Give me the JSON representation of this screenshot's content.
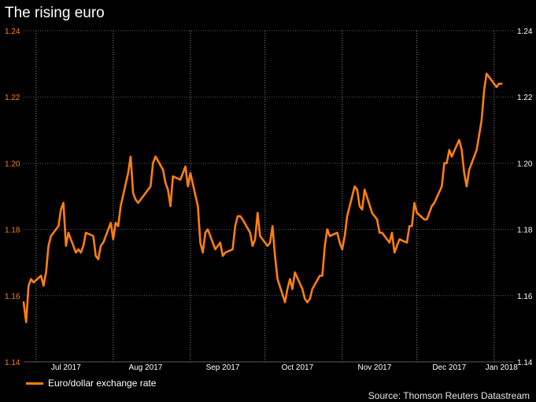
{
  "title": "The rising euro",
  "legend": {
    "label": "Euro/dollar exchange rate"
  },
  "source": "Source: Thomson Reuters Datastream",
  "colors": {
    "line": "#ff7f0e",
    "left_axis_text": "#ff7f0e",
    "right_axis_text": "#ffffff",
    "grid": "#5a5a5a",
    "month_grid": "#8a8a8a",
    "background": "#000000"
  },
  "chart_data": {
    "type": "line",
    "title": "The rising euro",
    "xlabel": "",
    "ylabel": "",
    "ylim": [
      1.14,
      1.24
    ],
    "yticks": [
      "1.14",
      "1.16",
      "1.18",
      "1.20",
      "1.22",
      "1.24"
    ],
    "y_axes": "left and right",
    "x_tick_labels": [
      "Jul 2017",
      "Aug 2017",
      "Sep 2017",
      "Oct 2017",
      "Nov 2017",
      "Dec 2017",
      "Jan 2018"
    ],
    "x_range": [
      "2017-06-26",
      "2018-01-09"
    ],
    "grid": true,
    "legend_position": "bottom-left",
    "series": [
      {
        "name": "Euro/dollar exchange rate",
        "points": [
          [
            "2017-06-26",
            1.158
          ],
          [
            "2017-06-27",
            1.152
          ],
          [
            "2017-06-28",
            1.163
          ],
          [
            "2017-06-29",
            1.165
          ],
          [
            "2017-06-30",
            1.164
          ],
          [
            "2017-07-03",
            1.166
          ],
          [
            "2017-07-04",
            1.163
          ],
          [
            "2017-07-05",
            1.167
          ],
          [
            "2017-07-06",
            1.175
          ],
          [
            "2017-07-07",
            1.178
          ],
          [
            "2017-07-10",
            1.181
          ],
          [
            "2017-07-11",
            1.186
          ],
          [
            "2017-07-12",
            1.188
          ],
          [
            "2017-07-13",
            1.175
          ],
          [
            "2017-07-14",
            1.179
          ],
          [
            "2017-07-17",
            1.173
          ],
          [
            "2017-07-18",
            1.174
          ],
          [
            "2017-07-19",
            1.173
          ],
          [
            "2017-07-20",
            1.175
          ],
          [
            "2017-07-21",
            1.179
          ],
          [
            "2017-07-24",
            1.178
          ],
          [
            "2017-07-25",
            1.172
          ],
          [
            "2017-07-26",
            1.171
          ],
          [
            "2017-07-27",
            1.175
          ],
          [
            "2017-07-28",
            1.176
          ],
          [
            "2017-07-31",
            1.182
          ],
          [
            "2017-08-01",
            1.177
          ],
          [
            "2017-08-02",
            1.182
          ],
          [
            "2017-08-03",
            1.181
          ],
          [
            "2017-08-04",
            1.187
          ],
          [
            "2017-08-07",
            1.197
          ],
          [
            "2017-08-08",
            1.202
          ],
          [
            "2017-08-09",
            1.191
          ],
          [
            "2017-08-10",
            1.189
          ],
          [
            "2017-08-11",
            1.188
          ],
          [
            "2017-08-14",
            1.191
          ],
          [
            "2017-08-15",
            1.192
          ],
          [
            "2017-08-16",
            1.193
          ],
          [
            "2017-08-17",
            1.2
          ],
          [
            "2017-08-18",
            1.202
          ],
          [
            "2017-08-21",
            1.198
          ],
          [
            "2017-08-22",
            1.194
          ],
          [
            "2017-08-23",
            1.192
          ],
          [
            "2017-08-24",
            1.187
          ],
          [
            "2017-08-25",
            1.196
          ],
          [
            "2017-08-28",
            1.195
          ],
          [
            "2017-08-29",
            1.197
          ],
          [
            "2017-08-30",
            1.199
          ],
          [
            "2017-08-31",
            1.193
          ],
          [
            "2017-09-01",
            1.197
          ],
          [
            "2017-09-04",
            1.187
          ],
          [
            "2017-09-05",
            1.176
          ],
          [
            "2017-09-06",
            1.173
          ],
          [
            "2017-09-07",
            1.179
          ],
          [
            "2017-09-08",
            1.18
          ],
          [
            "2017-09-11",
            1.174
          ],
          [
            "2017-09-12",
            1.175
          ],
          [
            "2017-09-13",
            1.176
          ],
          [
            "2017-09-14",
            1.172
          ],
          [
            "2017-09-15",
            1.173
          ],
          [
            "2017-09-18",
            1.174
          ],
          [
            "2017-09-19",
            1.181
          ],
          [
            "2017-09-20",
            1.184
          ],
          [
            "2017-09-21",
            1.184
          ],
          [
            "2017-09-22",
            1.183
          ],
          [
            "2017-09-25",
            1.179
          ],
          [
            "2017-09-26",
            1.175
          ],
          [
            "2017-09-27",
            1.177
          ],
          [
            "2017-09-28",
            1.185
          ],
          [
            "2017-09-29",
            1.178
          ],
          [
            "2017-10-02",
            1.175
          ],
          [
            "2017-10-03",
            1.176
          ],
          [
            "2017-10-04",
            1.181
          ],
          [
            "2017-10-05",
            1.172
          ],
          [
            "2017-10-06",
            1.165
          ],
          [
            "2017-10-09",
            1.158
          ],
          [
            "2017-10-10",
            1.162
          ],
          [
            "2017-10-11",
            1.165
          ],
          [
            "2017-10-12",
            1.162
          ],
          [
            "2017-10-13",
            1.167
          ],
          [
            "2017-10-16",
            1.162
          ],
          [
            "2017-10-17",
            1.159
          ],
          [
            "2017-10-18",
            1.158
          ],
          [
            "2017-10-19",
            1.159
          ],
          [
            "2017-10-20",
            1.162
          ],
          [
            "2017-10-23",
            1.166
          ],
          [
            "2017-10-24",
            1.166
          ],
          [
            "2017-10-25",
            1.175
          ],
          [
            "2017-10-26",
            1.18
          ],
          [
            "2017-10-27",
            1.178
          ],
          [
            "2017-10-30",
            1.179
          ],
          [
            "2017-10-31",
            1.176
          ],
          [
            "2017-11-01",
            1.174
          ],
          [
            "2017-11-02",
            1.178
          ],
          [
            "2017-11-03",
            1.184
          ],
          [
            "2017-11-06",
            1.193
          ],
          [
            "2017-11-07",
            1.192
          ],
          [
            "2017-11-08",
            1.187
          ],
          [
            "2017-11-09",
            1.186
          ],
          [
            "2017-11-10",
            1.192
          ],
          [
            "2017-11-13",
            1.185
          ],
          [
            "2017-11-14",
            1.184
          ],
          [
            "2017-11-15",
            1.183
          ],
          [
            "2017-11-16",
            1.179
          ],
          [
            "2017-11-17",
            1.179
          ],
          [
            "2017-11-20",
            1.176
          ],
          [
            "2017-11-21",
            1.179
          ],
          [
            "2017-11-22",
            1.173
          ],
          [
            "2017-11-23",
            1.175
          ],
          [
            "2017-11-24",
            1.177
          ],
          [
            "2017-11-27",
            1.176
          ],
          [
            "2017-11-28",
            1.181
          ],
          [
            "2017-11-29",
            1.181
          ],
          [
            "2017-11-30",
            1.188
          ],
          [
            "2017-12-01",
            1.185
          ],
          [
            "2017-12-04",
            1.183
          ],
          [
            "2017-12-05",
            1.183
          ],
          [
            "2017-12-06",
            1.185
          ],
          [
            "2017-12-07",
            1.187
          ],
          [
            "2017-12-08",
            1.188
          ],
          [
            "2017-12-11",
            1.193
          ],
          [
            "2017-12-12",
            1.2
          ],
          [
            "2017-12-13",
            1.2
          ],
          [
            "2017-12-14",
            1.204
          ],
          [
            "2017-12-15",
            1.202
          ],
          [
            "2017-12-18",
            1.207
          ],
          [
            "2017-12-19",
            1.204
          ],
          [
            "2017-12-20",
            1.197
          ],
          [
            "2017-12-21",
            1.193
          ],
          [
            "2017-12-22",
            1.198
          ],
          [
            "2017-12-25",
            1.204
          ],
          [
            "2017-12-27",
            1.213
          ],
          [
            "2017-12-28",
            1.222
          ],
          [
            "2017-12-29",
            1.227
          ],
          [
            "2018-01-02",
            1.223
          ],
          [
            "2018-01-03",
            1.224
          ],
          [
            "2018-01-04",
            1.224
          ]
        ]
      }
    ]
  }
}
